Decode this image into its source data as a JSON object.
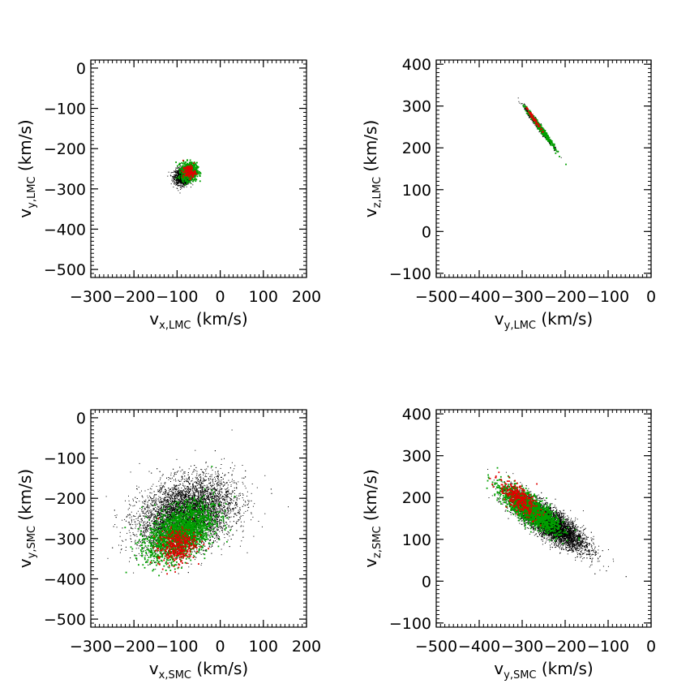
{
  "chart_data": [
    {
      "type": "scatter",
      "xlabel": "v",
      "xlabel_sub": "x,LMC",
      "xlabel_unit": "(km/s)",
      "ylabel": "v",
      "ylabel_sub": "y,LMC",
      "ylabel_unit": "(km/s)",
      "xlim": [
        -300,
        200
      ],
      "ylim": [
        -520,
        20
      ],
      "xticks": [
        -300,
        -200,
        -100,
        0,
        100,
        200
      ],
      "xtick_labels": [
        "−300",
        "−200",
        "−100",
        "0",
        "100",
        "200"
      ],
      "yticks": [
        0,
        -100,
        -200,
        -300,
        -400,
        -500
      ],
      "ytick_labels": [
        "0",
        "−100",
        "−200",
        "−300",
        "−400",
        "−500"
      ],
      "series": [
        {
          "color": "#000000",
          "cx": -88,
          "cy": -270,
          "sx": 9,
          "sy": 10,
          "rho": 0,
          "n": 1300,
          "size": 1
        },
        {
          "color": "#00a000",
          "cx": -72,
          "cy": -257,
          "sx": 9,
          "sy": 11,
          "rho": 0,
          "n": 700,
          "size": 1.8
        },
        {
          "color": "#e00000",
          "cx": -72,
          "cy": -258,
          "sx": 7,
          "sy": 8,
          "rho": 0,
          "n": 120,
          "size": 1.8
        }
      ]
    },
    {
      "type": "scatter",
      "xlabel": "v",
      "xlabel_sub": "y,LMC",
      "xlabel_unit": "(km/s)",
      "ylabel": "v",
      "ylabel_sub": "z,LMC",
      "ylabel_unit": "(km/s)",
      "xlim": [
        -500,
        0
      ],
      "ylim": [
        -110,
        410
      ],
      "xticks": [
        -500,
        -400,
        -300,
        -200,
        -100,
        0
      ],
      "xtick_labels": [
        "−500",
        "−400",
        "−300",
        "−200",
        "−100",
        "0"
      ],
      "yticks": [
        400,
        300,
        200,
        100,
        0,
        -100
      ],
      "ytick_labels": [
        "400",
        "300",
        "200",
        "100",
        "0",
        "−100"
      ],
      "series": [
        {
          "color": "#000000",
          "cx": -262,
          "cy": 252,
          "sx": 16,
          "sy": 22,
          "rho": -0.985,
          "n": 900,
          "size": 1
        },
        {
          "color": "#00a000",
          "cx": -258,
          "cy": 248,
          "sx": 14,
          "sy": 20,
          "rho": -0.985,
          "n": 500,
          "size": 1.8
        },
        {
          "color": "#e00000",
          "cx": -272,
          "cy": 268,
          "sx": 8,
          "sy": 12,
          "rho": -0.98,
          "n": 60,
          "size": 1.8
        }
      ]
    },
    {
      "type": "scatter",
      "xlabel": "v",
      "xlabel_sub": "x,SMC",
      "xlabel_unit": "(km/s)",
      "ylabel": "v",
      "ylabel_sub": "y,SMC",
      "ylabel_unit": "(km/s)",
      "xlim": [
        -300,
        200
      ],
      "ylim": [
        -520,
        20
      ],
      "xticks": [
        -300,
        -200,
        -100,
        0,
        100,
        200
      ],
      "xtick_labels": [
        "−300",
        "−200",
        "−100",
        "0",
        "100",
        "200"
      ],
      "yticks": [
        0,
        -100,
        -200,
        -300,
        -400,
        -500
      ],
      "ytick_labels": [
        "0",
        "−100",
        "−200",
        "−300",
        "−400",
        "−500"
      ],
      "series": [
        {
          "color": "#000000",
          "cx": -78,
          "cy": -240,
          "sx": 55,
          "sy": 45,
          "rho": 0.3,
          "n": 7000,
          "size": 1
        },
        {
          "color": "#00a000",
          "cx": -92,
          "cy": -285,
          "sx": 38,
          "sy": 35,
          "rho": 0.45,
          "n": 1800,
          "size": 1.8
        },
        {
          "color": "#e00000",
          "cx": -100,
          "cy": -318,
          "sx": 22,
          "sy": 22,
          "rho": 0.2,
          "n": 350,
          "size": 1.8
        }
      ]
    },
    {
      "type": "scatter",
      "xlabel": "v",
      "xlabel_sub": "y,SMC",
      "xlabel_unit": "(km/s)",
      "ylabel": "v",
      "ylabel_sub": "z,SMC",
      "ylabel_unit": "(km/s)",
      "xlim": [
        -500,
        0
      ],
      "ylim": [
        -110,
        410
      ],
      "xticks": [
        -500,
        -400,
        -300,
        -200,
        -100,
        0
      ],
      "xtick_labels": [
        "−500",
        "−400",
        "−300",
        "−200",
        "−100",
        "0"
      ],
      "yticks": [
        400,
        300,
        200,
        100,
        0,
        -100
      ],
      "ytick_labels": [
        "400",
        "300",
        "200",
        "100",
        "0",
        "−100"
      ],
      "series": [
        {
          "color": "#000000",
          "cx": -238,
          "cy": 140,
          "sx": 42,
          "sy": 32,
          "rho": -0.82,
          "n": 7000,
          "size": 1
        },
        {
          "color": "#00a000",
          "cx": -282,
          "cy": 172,
          "sx": 32,
          "sy": 26,
          "rho": -0.8,
          "n": 1800,
          "size": 1.8
        },
        {
          "color": "#e00000",
          "cx": -308,
          "cy": 198,
          "sx": 22,
          "sy": 20,
          "rho": -0.7,
          "n": 320,
          "size": 1.8
        }
      ]
    }
  ]
}
